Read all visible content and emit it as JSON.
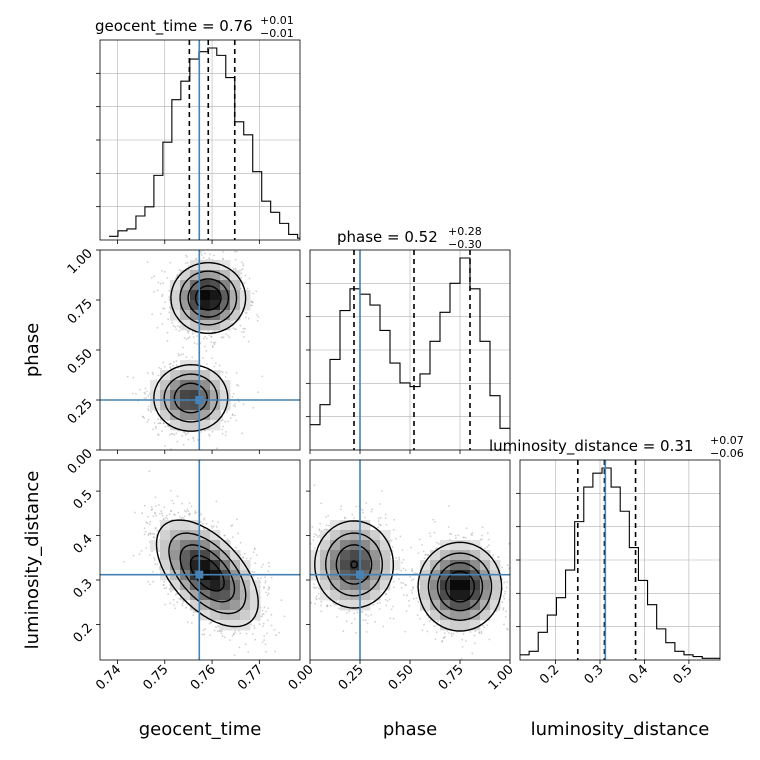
{
  "chart_data": {
    "type": "corner",
    "parameters": [
      {
        "name": "geocent_time",
        "axis_label": "geocent_time",
        "range": [
          0.7363,
          0.7786
        ],
        "ticks": [
          0.74,
          0.75,
          0.76,
          0.77
        ],
        "tick_labels": [
          "0.74",
          "0.75",
          "0.76",
          "0.77"
        ],
        "truth": 0.7573,
        "quantiles": [
          0.7552,
          0.7592,
          0.7648
        ],
        "title_main": "geocent_time = 0.76",
        "title_sup": "+0.01",
        "title_sub": "−0.01",
        "hist_bin_edges_start": 0.7382,
        "hist_bin_width": 0.0019,
        "hist": [
          2,
          5,
          6,
          13,
          18,
          35,
          53,
          76,
          86,
          98,
          102,
          104,
          100,
          88,
          64,
          57,
          37,
          21,
          15,
          9,
          3,
          1
        ]
      },
      {
        "name": "phase",
        "axis_label": "phase",
        "range": [
          0.0,
          1.0
        ],
        "ticks": [
          0.0,
          0.25,
          0.5,
          0.75,
          1.0
        ],
        "tick_labels": [
          "0.00",
          "0.25",
          "0.50",
          "0.75",
          "1.00"
        ],
        "truth": 0.25,
        "quantiles": [
          0.22,
          0.52,
          0.8
        ],
        "title_main": "phase = 0.52",
        "title_sup": "+0.28",
        "title_sub": "−0.30",
        "hist_bin_edges_start": 0.0,
        "hist_bin_width": 0.05,
        "hist": [
          14,
          25,
          50,
          77,
          89,
          86,
          80,
          66,
          48,
          37,
          35,
          42,
          60,
          76,
          92,
          106,
          89,
          60,
          30,
          12
        ]
      },
      {
        "name": "luminosity_distance",
        "axis_label": "luminosity_distance",
        "range": [
          0.12,
          0.57
        ],
        "ticks": [
          0.2,
          0.3,
          0.4,
          0.5
        ],
        "tick_labels": [
          "0.2",
          "0.3",
          "0.4",
          "0.5"
        ],
        "truth": 0.312,
        "quantiles": [
          0.25,
          0.31,
          0.38
        ],
        "title_main": "luminosity_distance = 0.31",
        "title_sup": "+0.07",
        "title_sub": "−0.06",
        "hist_bin_edges_start": 0.12,
        "hist_bin_width": 0.0205,
        "hist": [
          3,
          5,
          16,
          26,
          36,
          52,
          80,
          100,
          108,
          111,
          100,
          86,
          65,
          46,
          32,
          18,
          10,
          5,
          3,
          2,
          1,
          1
        ]
      }
    ],
    "pairs": [
      {
        "x": "geocent_time",
        "y": "phase",
        "modes": [
          {
            "x": 0.7592,
            "y": 0.76,
            "weight": 0.55,
            "sx": 0.0038,
            "sy": 0.085,
            "rho": 0.0
          },
          {
            "x": 0.7555,
            "y": 0.26,
            "weight": 0.45,
            "sx": 0.004,
            "sy": 0.085,
            "rho": 0.0
          }
        ]
      },
      {
        "x": "geocent_time",
        "y": "luminosity_distance",
        "modes": [
          {
            "x": 0.759,
            "y": 0.315,
            "weight": 1.0,
            "sx": 0.0052,
            "sy": 0.058,
            "rho": -0.55
          }
        ]
      },
      {
        "x": "phase",
        "y": "luminosity_distance",
        "modes": [
          {
            "x": 0.22,
            "y": 0.335,
            "weight": 0.45,
            "sx": 0.1,
            "sy": 0.05,
            "rho": 0.0
          },
          {
            "x": 0.75,
            "y": 0.285,
            "weight": 0.55,
            "sx": 0.1,
            "sy": 0.048,
            "rho": 0.0
          }
        ]
      }
    ],
    "style": {
      "truth_color": "#4682b4",
      "contour_color": "#000000",
      "grid": true,
      "grid_color": "#b0b0b0",
      "hist_line_color": "#000000"
    }
  }
}
